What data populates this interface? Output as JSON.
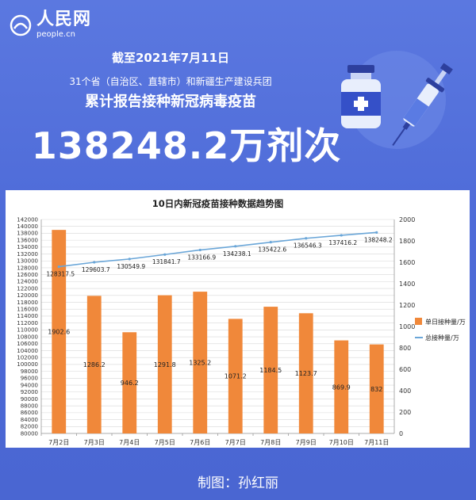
{
  "header": {
    "logo_cn": "人民网",
    "logo_en": "people.cn",
    "date_line": "截至2021年7月11日",
    "scope_line": "31个省（自治区、直辖市）和新疆生产建设兵团",
    "subtitle": "累计报告接种新冠病毒疫苗",
    "headline": "138248.2万剂次"
  },
  "credit": "制图：孙红丽",
  "chart_data": {
    "type": "bar",
    "title": "10日内新冠疫苗接种数据趋势图",
    "categories": [
      "7月2日",
      "7月3日",
      "7月4日",
      "7月5日",
      "7月6日",
      "7月7日",
      "7月8日",
      "7月9日",
      "7月10日",
      "7月11日"
    ],
    "series": [
      {
        "name": "单日接种量/万",
        "kind": "bar",
        "axis": "left",
        "color": "#f0883a",
        "values": [
          1902.6,
          1286.2,
          946.2,
          1291.8,
          1325.2,
          1071.2,
          1184.5,
          1123.7,
          869.9,
          832
        ]
      },
      {
        "name": "总接种量/万",
        "kind": "line",
        "axis": "right",
        "color": "#6aa6d8",
        "values": [
          128317.5,
          129603.7,
          130549.9,
          131841.7,
          133166.9,
          134238.1,
          135422.6,
          136546.3,
          137416.2,
          138248.2
        ]
      }
    ],
    "left_axis": {
      "min": 80000,
      "max": 142000,
      "step": 2000
    },
    "right_axis": {
      "min": 0,
      "max": 2000,
      "step": 200
    },
    "legend_position": "right"
  }
}
